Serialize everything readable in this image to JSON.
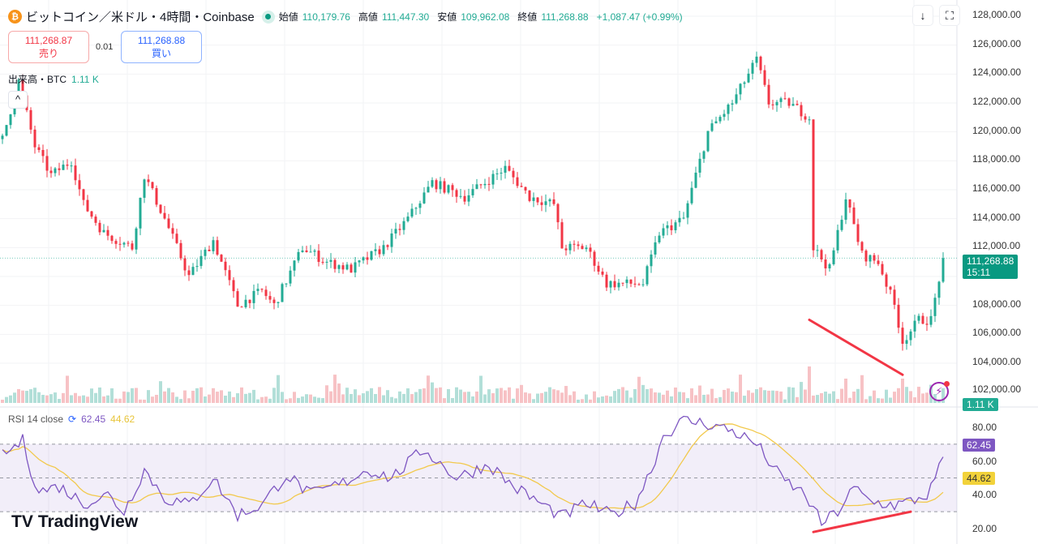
{
  "header": {
    "symbol_icon": "bitcoin-icon",
    "title": "ビットコイン／米ドル・4時間・Coinbase",
    "open_label": "始値",
    "open": "110,179.76",
    "high_label": "高値",
    "high": "111,447.30",
    "low_label": "安値",
    "low": "109,962.08",
    "close_label": "終値",
    "close": "111,268.88",
    "change": "+1,087.47 (+0.99%)"
  },
  "trade": {
    "sell_price": "111,268.87",
    "sell_label": "売り",
    "spread": "0.01",
    "buy_price": "111,268.88",
    "buy_label": "買い"
  },
  "volume": {
    "label": "出来高・BTC",
    "value": "1.11 K"
  },
  "toolbar": {
    "download_icon": "↓",
    "fullscreen_icon": "⛶"
  },
  "price_axis": [
    "128,000.00",
    "126,000.00",
    "124,000.00",
    "122,000.00",
    "120,000.00",
    "118,000.00",
    "116,000.00",
    "114,000.00",
    "112,000.00",
    "108,000.00",
    "106,000.00",
    "104,000.00",
    "102,000.00"
  ],
  "last_price_tag": {
    "price": "111,268.88",
    "countdown": "15:11"
  },
  "volume_tag": "1.11 K",
  "rsi": {
    "label": "RSI 14 close",
    "value": "62.45",
    "signal": "44.62",
    "axis": [
      "80.00",
      "60.00",
      "40.00",
      "20.00"
    ]
  },
  "branding": "TradingView",
  "colors": {
    "up": "#22ab94",
    "down": "#f23645",
    "rsi": "#7e57c2",
    "signal": "#f2c94c",
    "trendline": "#f23645"
  },
  "chart_data": {
    "type": "candlestick",
    "title": "ビットコイン／米ドル・4時間・Coinbase",
    "ylim": [
      102000,
      128000
    ],
    "close_waypoints": [
      [
        0,
        119500
      ],
      [
        4,
        123500
      ],
      [
        8,
        119000
      ],
      [
        12,
        117000
      ],
      [
        17,
        118000
      ],
      [
        20,
        115000
      ],
      [
        25,
        113000
      ],
      [
        32,
        112000
      ],
      [
        35,
        117000
      ],
      [
        40,
        114000
      ],
      [
        46,
        110000
      ],
      [
        52,
        112500
      ],
      [
        58,
        108000
      ],
      [
        64,
        109000
      ],
      [
        67,
        108000
      ],
      [
        74,
        112000
      ],
      [
        80,
        111000
      ],
      [
        86,
        110500
      ],
      [
        94,
        112000
      ],
      [
        100,
        114000
      ],
      [
        106,
        116500
      ],
      [
        114,
        115500
      ],
      [
        124,
        117500
      ],
      [
        130,
        115500
      ],
      [
        136,
        115000
      ],
      [
        138,
        112000
      ],
      [
        144,
        112000
      ],
      [
        149,
        109500
      ],
      [
        158,
        109500
      ],
      [
        162,
        113000
      ],
      [
        168,
        114000
      ],
      [
        174,
        120000
      ],
      [
        180,
        122000
      ],
      [
        186,
        125000
      ],
      [
        189,
        122000
      ],
      [
        194,
        122000
      ],
      [
        199,
        121000
      ],
      [
        200,
        112000
      ],
      [
        204,
        110500
      ],
      [
        208,
        115500
      ],
      [
        212,
        111500
      ],
      [
        216,
        111000
      ],
      [
        220,
        108000
      ],
      [
        222,
        105500
      ],
      [
        226,
        107000
      ],
      [
        229,
        107000
      ],
      [
        232,
        111268.88
      ]
    ],
    "rsi_waypoints": [
      [
        0,
        63
      ],
      [
        5,
        72
      ],
      [
        7,
        55
      ],
      [
        9,
        42
      ],
      [
        14,
        45
      ],
      [
        20,
        35
      ],
      [
        26,
        40
      ],
      [
        30,
        30
      ],
      [
        35,
        55
      ],
      [
        40,
        38
      ],
      [
        46,
        34
      ],
      [
        52,
        50
      ],
      [
        58,
        28
      ],
      [
        64,
        34
      ],
      [
        70,
        52
      ],
      [
        76,
        40
      ],
      [
        84,
        47
      ],
      [
        90,
        55
      ],
      [
        96,
        50
      ],
      [
        104,
        67
      ],
      [
        112,
        50
      ],
      [
        120,
        58
      ],
      [
        126,
        45
      ],
      [
        132,
        36
      ],
      [
        138,
        27
      ],
      [
        144,
        35
      ],
      [
        150,
        28
      ],
      [
        156,
        35
      ],
      [
        160,
        55
      ],
      [
        163,
        75
      ],
      [
        168,
        84
      ],
      [
        174,
        82
      ],
      [
        180,
        78
      ],
      [
        186,
        70
      ],
      [
        192,
        50
      ],
      [
        198,
        40
      ],
      [
        202,
        23
      ],
      [
        206,
        30
      ],
      [
        210,
        44
      ],
      [
        214,
        36
      ],
      [
        220,
        34
      ],
      [
        224,
        36
      ],
      [
        228,
        40
      ],
      [
        230,
        48
      ],
      [
        232,
        62.45
      ]
    ],
    "rsi_levels": [
      70,
      50,
      30
    ],
    "rsi_ylim": [
      15,
      85
    ],
    "trendlines": [
      {
        "pane": "price",
        "from": [
          199,
          107000
        ],
        "to": [
          222,
          103200
        ]
      },
      {
        "pane": "rsi",
        "from": [
          200,
          18
        ],
        "to": [
          224,
          30
        ]
      }
    ]
  }
}
